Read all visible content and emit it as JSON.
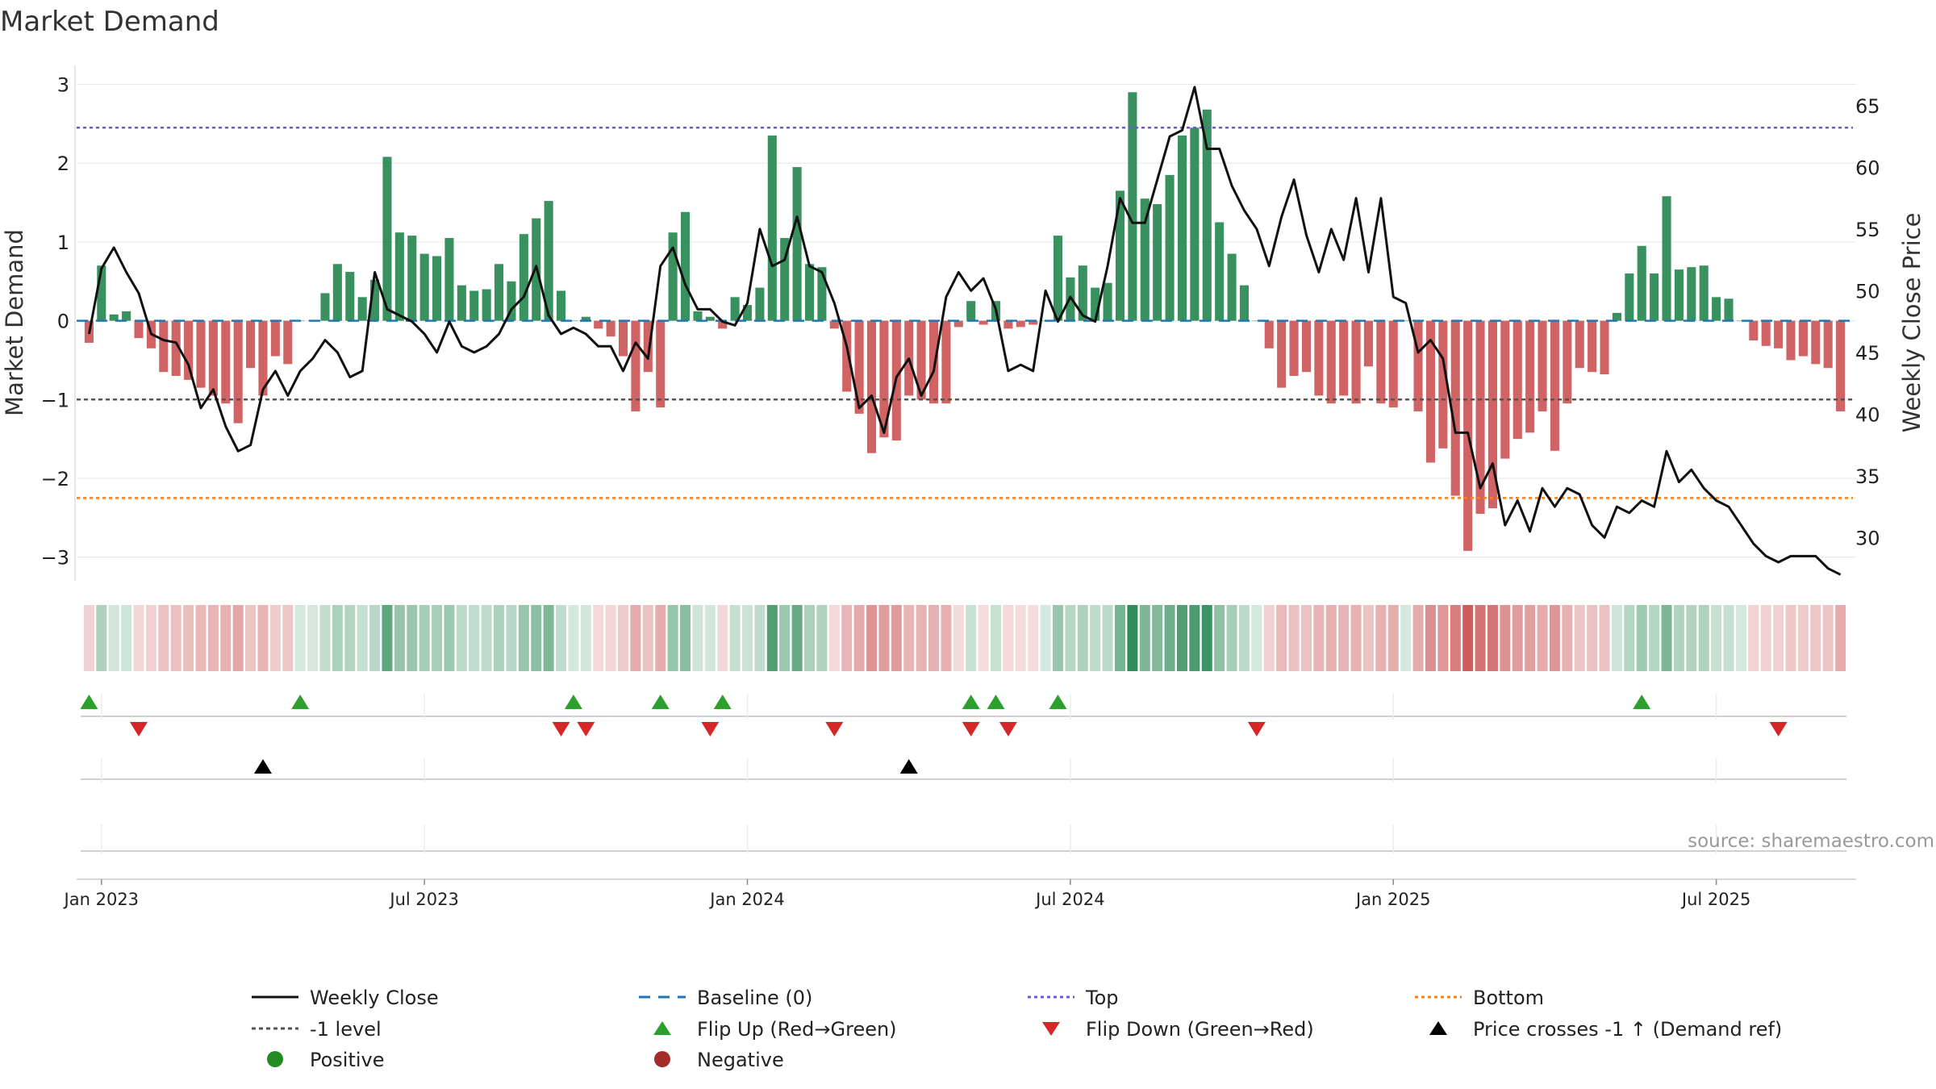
{
  "chart_data": {
    "type": "bar",
    "title": "Market Demand",
    "ylabel": "Market Demand",
    "y2label": "Weekly Close Price",
    "ylim": [
      -3.3,
      3.2
    ],
    "y2lim": [
      26.5,
      68.0
    ],
    "yticks": [
      3,
      2,
      1,
      0,
      -1,
      -2,
      -3
    ],
    "yticklabels": [
      "3",
      "2",
      "1",
      "0",
      "−1",
      "−2",
      "−3"
    ],
    "y2ticks": [
      65,
      60,
      55,
      50,
      45,
      40,
      35,
      30
    ],
    "x_weeks_range": [
      -1,
      142
    ],
    "x_ticks": [
      {
        "label": "Jan 2023",
        "week": 1
      },
      {
        "label": "Jul 2023",
        "week": 27
      },
      {
        "label": "Jan 2024",
        "week": 53
      },
      {
        "label": "Jul 2024",
        "week": 79
      },
      {
        "label": "Jan 2025",
        "week": 105
      },
      {
        "label": "Jul 2025",
        "week": 131
      }
    ],
    "reference_lines": {
      "top": 2.45,
      "minus_one": -1.0,
      "bottom": -2.25,
      "baseline": 0
    },
    "demand": [
      -0.28,
      0.7,
      0.08,
      0.12,
      -0.22,
      -0.35,
      -0.65,
      -0.7,
      -0.75,
      -0.85,
      -0.95,
      -1.05,
      -1.3,
      -0.6,
      -0.95,
      -0.45,
      -0.55,
      0,
      0,
      0.35,
      0.72,
      0.62,
      0.3,
      0.52,
      2.08,
      1.12,
      1.08,
      0.85,
      0.82,
      1.05,
      0.45,
      0.38,
      0.4,
      0.72,
      0.5,
      1.1,
      1.3,
      1.52,
      0.38,
      0,
      0.05,
      -0.1,
      -0.2,
      -0.45,
      -1.15,
      -0.65,
      -1.1,
      1.12,
      1.38,
      0.12,
      0.05,
      -0.1,
      0.3,
      0.2,
      0.42,
      2.35,
      1.05,
      1.95,
      0.72,
      0.68,
      -0.1,
      -0.9,
      -1.18,
      -1.68,
      -1.48,
      -1.52,
      -0.95,
      -1.0,
      -1.05,
      -1.05,
      -0.08,
      0.25,
      -0.05,
      0.25,
      -0.1,
      -0.08,
      -0.05,
      0,
      1.08,
      0.55,
      0.7,
      0.42,
      0.48,
      1.65,
      2.9,
      1.55,
      1.48,
      1.85,
      2.35,
      2.45,
      2.68,
      1.25,
      0.85,
      0.45,
      0,
      -0.35,
      -0.85,
      -0.7,
      -0.65,
      -0.95,
      -1.05,
      -0.95,
      -1.05,
      -0.58,
      -1.05,
      -1.1,
      0,
      -1.15,
      -1.8,
      -1.62,
      -2.22,
      -2.92,
      -2.45,
      -2.38,
      -1.75,
      -1.5,
      -1.42,
      -1.15,
      -1.65,
      -1.05,
      -0.6,
      -0.65,
      -0.68,
      0.1,
      0.6,
      0.95,
      0.6,
      1.58,
      0.65,
      0.68,
      0.7,
      0.3,
      0.28,
      0,
      -0.25,
      -0.32,
      -0.35,
      -0.5,
      -0.45,
      -0.55,
      -0.6,
      -1.15
    ],
    "close": [
      46.5,
      51.8,
      53.5,
      51.5,
      49.8,
      46.5,
      46.0,
      45.8,
      44.0,
      40.5,
      42.0,
      39.0,
      37.0,
      37.5,
      42.0,
      43.5,
      41.5,
      43.5,
      44.5,
      46.0,
      45.0,
      43.0,
      43.5,
      51.5,
      48.5,
      48.0,
      47.5,
      46.5,
      45.0,
      47.5,
      45.5,
      45.0,
      45.5,
      46.5,
      48.5,
      49.5,
      52.0,
      48.0,
      46.5,
      47.0,
      46.5,
      45.5,
      45.5,
      43.5,
      45.8,
      44.5,
      52.0,
      53.5,
      50.5,
      48.5,
      48.5,
      47.5,
      47.2,
      49.0,
      55.0,
      52.0,
      52.5,
      56.0,
      52.0,
      51.5,
      49.0,
      45.5,
      40.5,
      41.5,
      38.5,
      43.0,
      44.5,
      41.5,
      43.5,
      49.5,
      51.5,
      50.0,
      51.0,
      48.5,
      43.5,
      44.0,
      43.5,
      50.0,
      47.5,
      49.5,
      48.0,
      47.5,
      52.0,
      57.5,
      55.5,
      55.5,
      59.0,
      62.5,
      63.0,
      66.5,
      61.5,
      61.5,
      58.5,
      56.5,
      55.0,
      52.0,
      56.0,
      59.0,
      54.5,
      51.5,
      55.0,
      52.5,
      57.5,
      51.5,
      57.5,
      49.5,
      49.0,
      45.0,
      46.0,
      44.5,
      38.5,
      38.5,
      34.0,
      36.0,
      31.0,
      33.0,
      30.5,
      34.0,
      32.5,
      34.0,
      33.5,
      31.0,
      30.0,
      32.5,
      32.0,
      33.0,
      32.5,
      37.0,
      34.5,
      35.5,
      34.0,
      33.0,
      32.5,
      31.0,
      29.5,
      28.5,
      28.0,
      28.5,
      28.5,
      28.5,
      27.5,
      27.0
    ],
    "flip_up_weeks": [
      0,
      17,
      39,
      46,
      51,
      71,
      73,
      78,
      125
    ],
    "flip_down_weeks": [
      4,
      38,
      40,
      50,
      60,
      71,
      74,
      94,
      136
    ],
    "price_cross_weeks": [
      14,
      66
    ],
    "legend": [
      {
        "label": "Weekly Close",
        "symbol": "line-black"
      },
      {
        "label": "Baseline (0)",
        "symbol": "dash-blue"
      },
      {
        "label": "Top",
        "symbol": "dot-purple"
      },
      {
        "label": "Bottom",
        "symbol": "dot-orange"
      },
      {
        "label": "-1 level",
        "symbol": "dot-grey"
      },
      {
        "label": "Flip Up (Red→Green)",
        "symbol": "tri-up-green"
      },
      {
        "label": "Flip Down (Green→Red)",
        "symbol": "tri-down-red"
      },
      {
        "label": "Price crosses -1 ↑ (Demand ref)",
        "symbol": "tri-up-black"
      },
      {
        "label": "Positive",
        "symbol": "circle-green"
      },
      {
        "label": "Negative",
        "symbol": "circle-red"
      }
    ],
    "source": "source: sharemaestro.com"
  },
  "colors": {
    "positive": "#2e8b57",
    "negative": "#cd5c5c",
    "close": "#111111",
    "baseline": "#1f77b4",
    "top": "#6a5acd",
    "bottom": "#ff7f0e",
    "minus_one": "#555555",
    "flip_up": "#2ca02c",
    "flip_down": "#d62728",
    "cross": "#000000",
    "grid": "#e6e6e6"
  }
}
